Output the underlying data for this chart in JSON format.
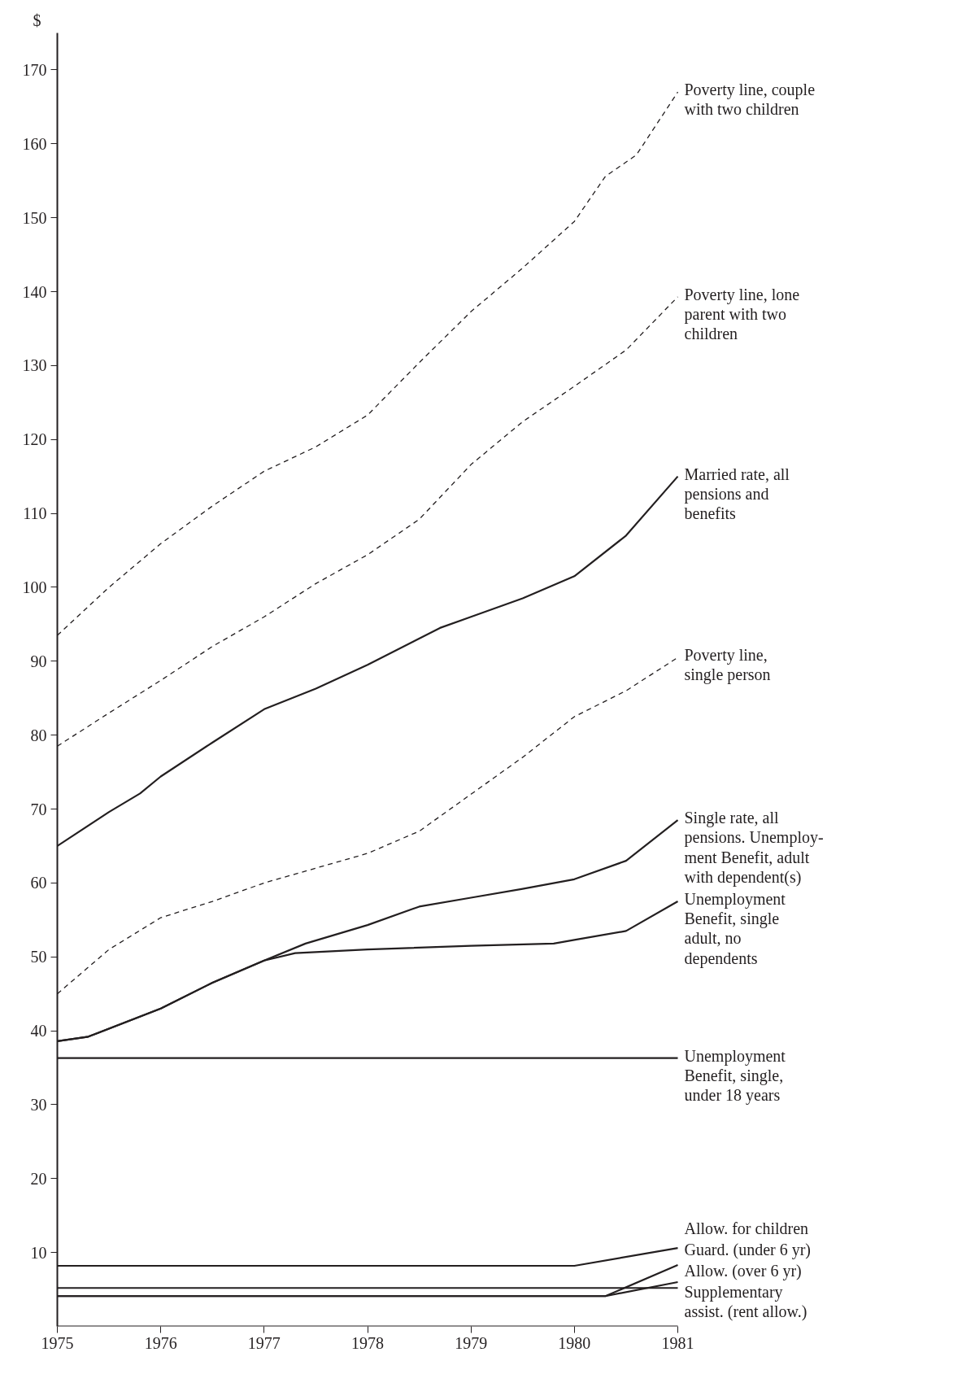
{
  "chart_data": {
    "type": "line",
    "ylabel": "$",
    "series": [
      {
        "name": "Poverty line, couple\nwith two children",
        "color": "#231f20",
        "line_style": "dashed",
        "x": [
          1975,
          1975.5,
          1976,
          1976.5,
          1977,
          1977.5,
          1978,
          1978.5,
          1979,
          1979.5,
          1980,
          1980.3,
          1980.6,
          1981
        ],
        "values": [
          93.5,
          100,
          105.9,
          111,
          115.7,
          119,
          123.3,
          130.4,
          137.3,
          143.2,
          149.5,
          155.6,
          158.5,
          167
        ]
      },
      {
        "name": "Poverty line, lone\nparent with two\nchildren",
        "color": "#231f20",
        "line_style": "dashed",
        "x": [
          1975,
          1975.5,
          1976,
          1976.5,
          1977,
          1977.5,
          1978,
          1978.5,
          1979,
          1979.5,
          1980,
          1980.5,
          1981
        ],
        "values": [
          78.5,
          83,
          87.4,
          92,
          96,
          100.5,
          104.4,
          109.2,
          116.6,
          122.4,
          127.2,
          132.1,
          139.3
        ]
      },
      {
        "name": "Married rate, all\npensions and\nbenefits",
        "color": "#231f20",
        "line_style": "solid",
        "x": [
          1975,
          1975.5,
          1975.8,
          1976,
          1976.5,
          1977,
          1977.5,
          1978,
          1978.7,
          1979,
          1979.5,
          1980,
          1980.5,
          1981
        ],
        "values": [
          65,
          69.6,
          72.1,
          74.4,
          79,
          83.5,
          86.3,
          89.5,
          94.5,
          96,
          98.5,
          101.5,
          107,
          115
        ]
      },
      {
        "name": "Poverty line,\nsingle person",
        "color": "#231f20",
        "line_style": "dashed",
        "x": [
          1975,
          1975.5,
          1976,
          1976.5,
          1977,
          1977.5,
          1978,
          1978.5,
          1979,
          1979.5,
          1980,
          1980.5,
          1981
        ],
        "values": [
          45,
          51,
          55.3,
          57.5,
          60,
          62,
          64,
          67,
          72,
          77,
          82.5,
          86,
          90.5
        ]
      },
      {
        "name": "Single rate, all\npensions. Unemploy-\nment Benefit, adult\nwith dependent(s)",
        "color": "#231f20",
        "line_style": "solid",
        "x": [
          1975,
          1975.3,
          1976,
          1976.5,
          1977,
          1977.4,
          1978,
          1978.5,
          1979,
          1979.5,
          1980,
          1980.5,
          1981
        ],
        "values": [
          38.6,
          39.2,
          43,
          46.5,
          49.5,
          51.8,
          54.3,
          56.8,
          58,
          59.2,
          60.5,
          63,
          68.5
        ]
      },
      {
        "name": "Unemployment\nBenefit, single\nadult, no\ndependents",
        "color": "#231f20",
        "line_style": "solid",
        "x": [
          1975,
          1975.3,
          1976,
          1976.5,
          1977,
          1977.3,
          1978,
          1979,
          1979.8,
          1980,
          1980.5,
          1981
        ],
        "values": [
          38.6,
          39.2,
          43,
          46.5,
          49.5,
          50.5,
          51,
          51.5,
          51.8,
          52.3,
          53.5,
          57.5
        ]
      },
      {
        "name": "Unemployment\nBenefit, single,\nunder 18 years",
        "color": "#231f20",
        "line_style": "solid",
        "x": [
          1975,
          1981
        ],
        "values": [
          36.3,
          36.3
        ]
      },
      {
        "name": "Guard. (under 6 yr)",
        "color": "#231f20",
        "line_style": "solid",
        "x": [
          1975,
          1980,
          1981
        ],
        "values": [
          8.2,
          8.2,
          10.6
        ]
      },
      {
        "color": "#231f20",
        "line_style": "solid",
        "x": [
          1975,
          1981
        ],
        "values": [
          5.2,
          5.2
        ]
      },
      {
        "name": "Allow. (over 6 yr)",
        "color": "#231f20",
        "line_style": "solid",
        "x": [
          1975,
          1980.3,
          1981
        ],
        "values": [
          4.1,
          4.1,
          8.3
        ]
      },
      {
        "name": "Supplementary\nassist. (rent allow.)",
        "color": "#231f20",
        "line_style": "solid",
        "x": [
          1975,
          1980.3,
          1981
        ],
        "values": [
          4.1,
          4.1,
          6.0
        ]
      }
    ],
    "annotations": [
      "Allow. for children"
    ],
    "xlim": [
      1975,
      1981
    ],
    "ylim": [
      0,
      175
    ],
    "xticks": [
      1975,
      1976,
      1977,
      1978,
      1979,
      1980,
      1981
    ],
    "yticks": [
      10,
      20,
      30,
      40,
      50,
      60,
      70,
      80,
      90,
      100,
      110,
      120,
      130,
      140,
      150,
      160,
      170
    ],
    "grid": false
  }
}
